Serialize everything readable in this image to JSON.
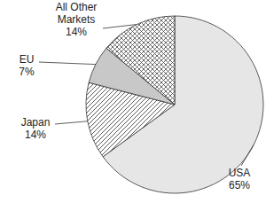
{
  "chart_data": {
    "type": "pie",
    "categories": [
      "USA",
      "Japan",
      "EU",
      "All Other Markets"
    ],
    "values": [
      65,
      14,
      7,
      14
    ],
    "value_labels": [
      "65%",
      "14%",
      "7%",
      "14%"
    ],
    "colors": [
      "#e6e6e6",
      "#ffffff",
      "#c8c8c8",
      "#ffffff"
    ],
    "data_labels": true
  }
}
